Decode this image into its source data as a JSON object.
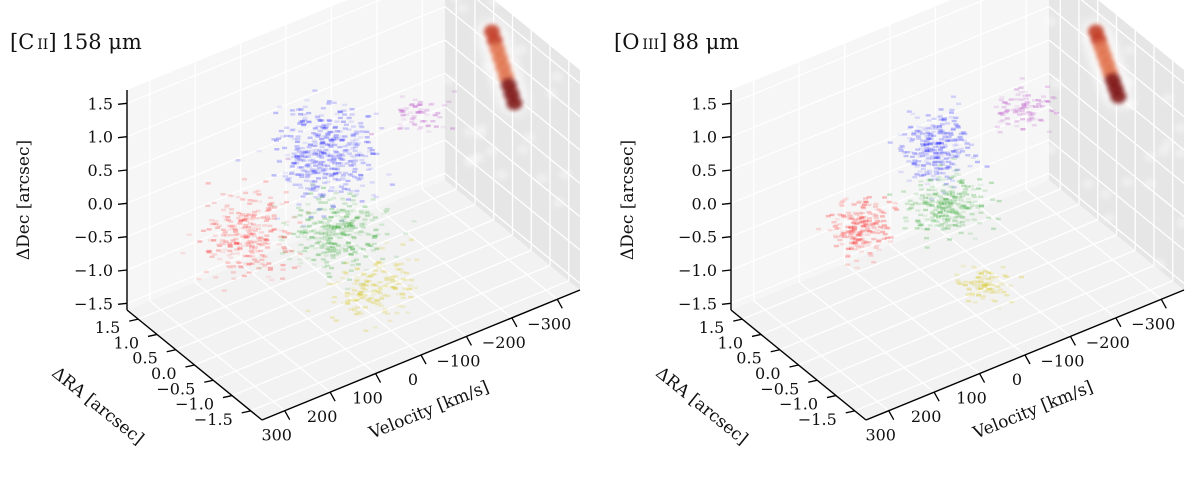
{
  "figure": {
    "description_free": true
  },
  "chart_data": [
    {
      "type": "scatter",
      "subtype": "3d-cube",
      "title": "[C II] 158 μm",
      "title_parts": {
        "species": "C",
        "ion": "II",
        "wavelength": "158 μm"
      },
      "xlabel": "Velocity [km/s]",
      "ylabel": "ΔRA [arcsec]",
      "zlabel": "ΔDec [arcsec]",
      "velocity_ticks": [
        "−300",
        "−200",
        "−100",
        "0",
        "100",
        "200",
        "300"
      ],
      "ra_ticks": [
        "1.5",
        "1.0",
        "0.5",
        "0.0",
        "−0.5",
        "−1.0",
        "−1.5"
      ],
      "dec_ticks": [
        "1.5",
        "1.0",
        "0.5",
        "0.0",
        "−0.5",
        "−1.0",
        "−1.5"
      ],
      "xlim": [
        -350,
        350
      ],
      "ylim": [
        -1.8,
        1.8
      ],
      "zlim": [
        -1.6,
        1.7
      ],
      "grid": true,
      "clumps": [
        {
          "name": "red",
          "color": "#ff2020",
          "velocity": 250,
          "ra": -0.2,
          "dec": 0.15,
          "spread": [
            40,
            0.3,
            0.25
          ],
          "points": 260
        },
        {
          "name": "blue",
          "color": "#2020ff",
          "velocity": 60,
          "ra": 0.0,
          "dec": 0.75,
          "spread": [
            45,
            0.35,
            0.3
          ],
          "points": 420
        },
        {
          "name": "green",
          "color": "#20a020",
          "velocity": 60,
          "ra": -0.3,
          "dec": -0.3,
          "spread": [
            45,
            0.35,
            0.22
          ],
          "points": 300
        },
        {
          "name": "yellow",
          "color": "#d4c20a",
          "velocity": 40,
          "ra": -1.0,
          "dec": -0.85,
          "spread": [
            40,
            0.3,
            0.18
          ],
          "points": 170
        },
        {
          "name": "magenta",
          "color": "#b030c0",
          "velocity": -170,
          "ra": 0.3,
          "dec": 0.55,
          "spread": [
            25,
            0.15,
            0.1
          ],
          "points": 60
        }
      ],
      "projection_map": {
        "colormap": "Reds",
        "peak_dec": 0.55,
        "secondary_dec": 1.2
      }
    },
    {
      "type": "scatter",
      "subtype": "3d-cube",
      "title": "[O III] 88 μm",
      "title_parts": {
        "species": "O",
        "ion": "III",
        "wavelength": "88 μm"
      },
      "xlabel": "Velocity [km/s]",
      "ylabel": "ΔRA [arcsec]",
      "zlabel": "ΔDec [arcsec]",
      "velocity_ticks": [
        "−300",
        "−200",
        "−100",
        "0",
        "100",
        "200",
        "300"
      ],
      "ra_ticks": [
        "1.5",
        "1.0",
        "0.5",
        "0.0",
        "−0.5",
        "−1.0",
        "−1.5"
      ],
      "dec_ticks": [
        "1.5",
        "1.0",
        "0.5",
        "0.0",
        "−0.5",
        "−1.0",
        "−1.5"
      ],
      "xlim": [
        -350,
        350
      ],
      "ylim": [
        -1.8,
        1.8
      ],
      "zlim": [
        -1.6,
        1.7
      ],
      "grid": true,
      "clumps": [
        {
          "name": "red",
          "color": "#ff2020",
          "velocity": 230,
          "ra": -0.2,
          "dec": 0.2,
          "spread": [
            30,
            0.22,
            0.18
          ],
          "points": 200
        },
        {
          "name": "blue",
          "color": "#2020ff",
          "velocity": 40,
          "ra": 0.1,
          "dec": 0.75,
          "spread": [
            30,
            0.25,
            0.22
          ],
          "points": 260
        },
        {
          "name": "green",
          "color": "#20a020",
          "velocity": 40,
          "ra": -0.2,
          "dec": 0.0,
          "spread": [
            35,
            0.25,
            0.15
          ],
          "points": 240
        },
        {
          "name": "yellow",
          "color": "#d4c20a",
          "velocity": 20,
          "ra": -1.0,
          "dec": -0.85,
          "spread": [
            25,
            0.2,
            0.1
          ],
          "points": 90
        },
        {
          "name": "magenta",
          "color": "#b030c0",
          "velocity": -170,
          "ra": 0.3,
          "dec": 0.65,
          "spread": [
            30,
            0.18,
            0.1
          ],
          "points": 90
        }
      ],
      "projection_map": {
        "colormap": "Reds",
        "peak_dec": 0.65,
        "secondary_dec": 1.2
      }
    }
  ]
}
